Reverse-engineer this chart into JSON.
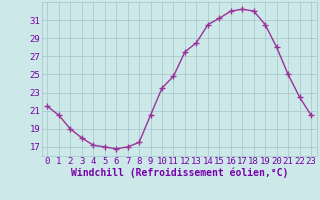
{
  "x": [
    0,
    1,
    2,
    3,
    4,
    5,
    6,
    7,
    8,
    9,
    10,
    11,
    12,
    13,
    14,
    15,
    16,
    17,
    18,
    19,
    20,
    21,
    22,
    23
  ],
  "y": [
    21.5,
    20.5,
    19.0,
    18.0,
    17.2,
    17.0,
    16.8,
    17.0,
    17.5,
    20.5,
    23.5,
    24.8,
    27.5,
    28.5,
    30.5,
    31.2,
    32.0,
    32.2,
    32.0,
    30.5,
    28.0,
    25.0,
    22.5,
    20.5
  ],
  "line_color": "#993399",
  "marker": "+",
  "markersize": 4,
  "linewidth": 1.0,
  "markeredgewidth": 1.0,
  "xlabel": "Windchill (Refroidissement éolien,°C)",
  "ylabel": "",
  "xlim": [
    -0.5,
    23.5
  ],
  "ylim": [
    16,
    33
  ],
  "yticks": [
    17,
    19,
    21,
    23,
    25,
    27,
    29,
    31
  ],
  "xticks": [
    0,
    1,
    2,
    3,
    4,
    5,
    6,
    7,
    8,
    9,
    10,
    11,
    12,
    13,
    14,
    15,
    16,
    17,
    18,
    19,
    20,
    21,
    22,
    23
  ],
  "background_color": "#cce8e8",
  "grid_color": "#aacccc",
  "tick_label_color": "#7700aa",
  "xlabel_color": "#7700aa",
  "xlabel_fontsize": 7,
  "tick_fontsize": 6.5,
  "title": ""
}
